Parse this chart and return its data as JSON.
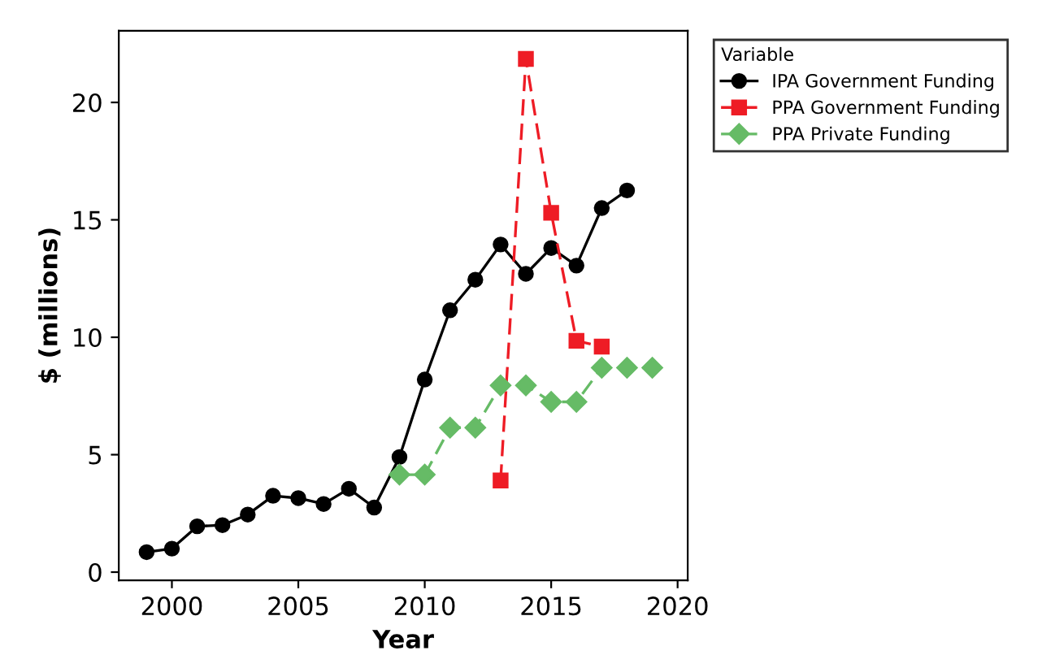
{
  "chart_data": {
    "type": "line",
    "xlabel": "Year",
    "ylabel": "$ (millions)",
    "legend_title": "Variable",
    "legend": "right",
    "grid": false,
    "xlim": [
      1997.9,
      2020.4
    ],
    "xticks": [
      2000,
      2005,
      2010,
      2015,
      2020
    ],
    "ylim": [
      -0.35,
      23.05
    ],
    "yticks": [
      0,
      5,
      10,
      15,
      20
    ],
    "series": [
      {
        "name": "IPA Government Funding",
        "color": "#000000",
        "marker": "circle",
        "line_style": "solid",
        "x": [
          1999,
          2000,
          2001,
          2002,
          2003,
          2004,
          2005,
          2006,
          2007,
          2008,
          2009,
          2010,
          2011,
          2012,
          2013,
          2014,
          2015,
          2016,
          2017,
          2018
        ],
        "values": [
          0.85,
          1.0,
          1.95,
          2.0,
          2.45,
          3.25,
          3.15,
          2.9,
          3.55,
          2.75,
          4.9,
          8.2,
          11.15,
          12.45,
          13.95,
          12.7,
          13.8,
          13.05,
          15.5,
          16.25
        ]
      },
      {
        "name": "PPA Government Funding",
        "color": "#ee1c25",
        "marker": "square",
        "line_style": "dashed",
        "x": [
          2013,
          2014,
          2015,
          2016,
          2017
        ],
        "values": [
          3.9,
          21.85,
          15.3,
          9.85,
          9.6
        ]
      },
      {
        "name": "PPA Private Funding",
        "color": "#66bb66",
        "marker": "diamond",
        "line_style": "dashed",
        "x": [
          2009,
          2010,
          2011,
          2012,
          2013,
          2014,
          2015,
          2016,
          2017,
          2018,
          2019
        ],
        "values": [
          4.15,
          4.15,
          6.15,
          6.15,
          7.95,
          7.95,
          7.25,
          7.25,
          8.7,
          8.7,
          8.7
        ]
      }
    ]
  }
}
